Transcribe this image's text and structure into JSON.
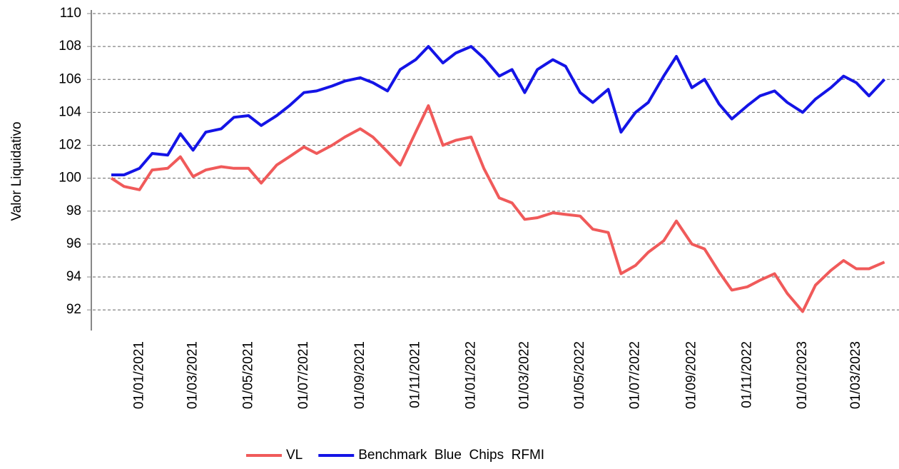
{
  "chart_data": {
    "type": "line",
    "ylabel": "Valor Liquidativo",
    "x": [
      "01/12/2020",
      "15/12/2020",
      "01/01/2021",
      "15/01/2021",
      "01/02/2021",
      "15/02/2021",
      "01/03/2021",
      "15/03/2021",
      "01/04/2021",
      "15/04/2021",
      "01/05/2021",
      "15/05/2021",
      "01/06/2021",
      "15/06/2021",
      "01/07/2021",
      "15/07/2021",
      "01/08/2021",
      "15/08/2021",
      "01/09/2021",
      "15/09/2021",
      "01/10/2021",
      "15/10/2021",
      "01/11/2021",
      "15/11/2021",
      "01/12/2021",
      "15/12/2021",
      "01/01/2022",
      "15/01/2022",
      "01/02/2022",
      "15/02/2022",
      "01/03/2022",
      "15/03/2022",
      "01/04/2022",
      "15/04/2022",
      "01/05/2022",
      "15/05/2022",
      "01/06/2022",
      "15/06/2022",
      "01/07/2022",
      "15/07/2022",
      "01/08/2022",
      "15/08/2022",
      "01/09/2022",
      "15/09/2022",
      "01/10/2022",
      "15/10/2022",
      "01/11/2022",
      "15/11/2022",
      "01/12/2022",
      "15/12/2022",
      "01/01/2023",
      "15/01/2023",
      "01/02/2023",
      "15/02/2023",
      "01/03/2023",
      "15/03/2023",
      "01/04/2023"
    ],
    "series": [
      {
        "name": "VL",
        "color": "#f05a5a",
        "values": [
          100.0,
          99.5,
          99.3,
          100.5,
          100.6,
          101.3,
          100.1,
          100.5,
          100.7,
          100.6,
          100.6,
          99.7,
          100.8,
          101.3,
          101.9,
          101.5,
          102.0,
          102.5,
          103.0,
          102.5,
          101.6,
          100.8,
          102.8,
          104.4,
          102.0,
          102.3,
          102.5,
          100.6,
          98.8,
          98.5,
          97.5,
          97.6,
          97.9,
          97.8,
          97.7,
          96.9,
          96.7,
          94.2,
          94.7,
          95.5,
          96.2,
          97.4,
          96.0,
          95.7,
          94.3,
          93.2,
          93.4,
          93.8,
          94.2,
          93.0,
          91.9,
          93.5,
          94.4,
          95.0,
          94.5,
          94.5,
          94.9
        ]
      },
      {
        "name": "Benchmark  Blue  Chips  RFMI",
        "color": "#1414e6",
        "values": [
          100.2,
          100.2,
          100.6,
          101.5,
          101.4,
          102.7,
          101.7,
          102.8,
          103.0,
          103.7,
          103.8,
          103.2,
          103.8,
          104.4,
          105.2,
          105.3,
          105.6,
          105.9,
          106.1,
          105.8,
          105.3,
          106.6,
          107.2,
          108.0,
          107.0,
          107.6,
          108.0,
          107.3,
          106.2,
          106.6,
          105.2,
          106.6,
          107.2,
          106.8,
          105.2,
          104.6,
          105.4,
          102.8,
          104.0,
          104.6,
          106.2,
          107.4,
          105.5,
          106.0,
          104.5,
          103.6,
          104.4,
          105.0,
          105.3,
          104.6,
          104.0,
          104.8,
          105.5,
          106.2,
          105.8,
          105.0,
          106.0
        ]
      }
    ],
    "xlim": [
      "09/11/2020",
      "17/04/2023"
    ],
    "xticks": [
      "01/01/2021",
      "01/03/2021",
      "01/05/2021",
      "01/07/2021",
      "01/09/2021",
      "01/11/2021",
      "01/01/2022",
      "01/03/2022",
      "01/05/2022",
      "01/07/2022",
      "01/09/2022",
      "01/11/2022",
      "01/01/2023",
      "01/03/2023"
    ],
    "ylim": [
      90.8,
      110
    ],
    "yticks": [
      92,
      94,
      96,
      98,
      100,
      102,
      104,
      106,
      108,
      110
    ],
    "grid": true,
    "legend": "bottom"
  }
}
